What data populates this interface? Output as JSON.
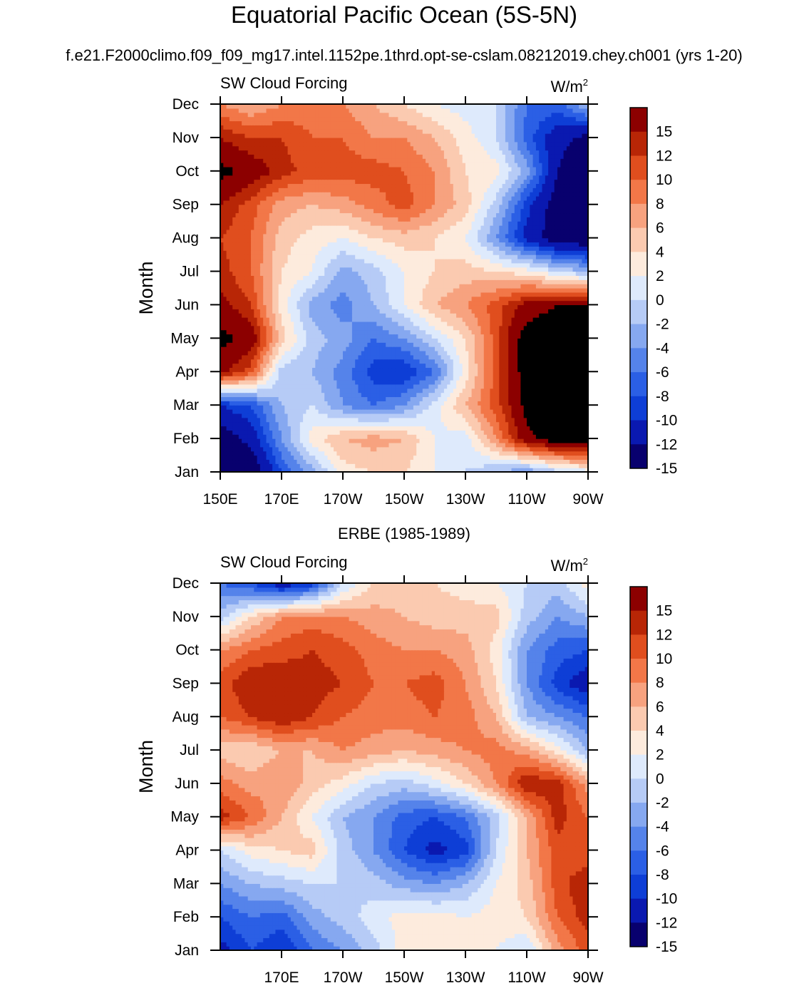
{
  "title": "Equatorial Pacific Ocean (5S-5N)",
  "panel_titles": [
    "f.e21.F2000climo.f09_f09_mg17.intel.1152pe.1thrd.opt-se-cslam.08212019.chey.ch001 (yrs 1-20)",
    "ERBE (1985-1989)"
  ],
  "chart_data": [
    {
      "type": "heatmap",
      "left_label": "SW Cloud Forcing",
      "right_label": "W/m",
      "right_label_sup": "2",
      "ylabel": "Month",
      "x_ticks": [
        "150E",
        "170E",
        "170W",
        "150W",
        "130W",
        "110W",
        "90W"
      ],
      "x_tick_values": [
        150,
        170,
        190,
        210,
        230,
        250,
        270
      ],
      "y_ticks": [
        "Jan",
        "Feb",
        "Mar",
        "Apr",
        "May",
        "Jun",
        "Jul",
        "Aug",
        "Sep",
        "Oct",
        "Nov",
        "Dec"
      ],
      "xlim": [
        150,
        270
      ],
      "ylim": [
        1,
        12
      ],
      "levels": [
        -15,
        -12,
        -10,
        -8,
        -6,
        -4,
        -2,
        0,
        2,
        4,
        6,
        8,
        10,
        12,
        15
      ],
      "colorbar_labels": [
        "15",
        "12",
        "10",
        "8",
        "6",
        "4",
        "2",
        "0",
        "-2",
        "-4",
        "-6",
        "-8",
        "-10",
        "-12",
        "-15"
      ],
      "colors": [
        "#08006e",
        "#0a19b0",
        "#0e3ed6",
        "#2b5fe5",
        "#5583ea",
        "#86a8f0",
        "#b6cbf6",
        "#deeafc",
        "#fdebdd",
        "#fbcab0",
        "#f7a27f",
        "#f27748",
        "#e04e1e",
        "#b82606",
        "#8c0000"
      ],
      "lon": [
        150,
        160,
        170,
        180,
        190,
        200,
        210,
        220,
        230,
        240,
        250,
        260,
        270
      ],
      "values": [
        [
          -18,
          -18,
          -10,
          -5,
          1,
          2,
          2,
          0,
          -2,
          -4,
          -6,
          -3,
          -1
        ],
        [
          -17,
          -14,
          -6,
          1,
          4,
          5,
          4,
          0,
          -1,
          6,
          14,
          17,
          18
        ],
        [
          -12,
          -10,
          -4,
          -2,
          -6,
          -8,
          -6,
          -1,
          4,
          9,
          16,
          18,
          18
        ],
        [
          13,
          9,
          -3,
          -4,
          -7,
          -11,
          -12,
          -8,
          1,
          9,
          17,
          18,
          18
        ],
        [
          16,
          14,
          3,
          -3,
          -5,
          -8,
          -6,
          -2,
          2,
          9,
          17,
          18,
          18
        ],
        [
          13,
          10,
          1,
          -5,
          -7,
          -4,
          0,
          4,
          6,
          9,
          13,
          15,
          15
        ],
        [
          11,
          8,
          2,
          0,
          -5,
          -3,
          0,
          2,
          3,
          2,
          1,
          -2,
          -4
        ],
        [
          10,
          8,
          3,
          1,
          0,
          2,
          3,
          2,
          0,
          -6,
          -13,
          -17,
          -18
        ],
        [
          12,
          9,
          5,
          4,
          5,
          7,
          9,
          6,
          3,
          -3,
          -11,
          -17,
          -18
        ],
        [
          16,
          14,
          11,
          9,
          9,
          9,
          8,
          6,
          2,
          1,
          -5,
          -15,
          -18
        ],
        [
          12,
          10,
          10,
          8,
          8,
          6,
          6,
          4,
          1,
          -2,
          -9,
          -14,
          -16
        ],
        [
          6,
          4,
          6,
          7,
          6,
          4,
          2,
          0,
          -1,
          -2,
          -8,
          -9,
          -4
        ]
      ]
    },
    {
      "type": "heatmap",
      "left_label": "SW Cloud Forcing",
      "right_label": "W/m",
      "right_label_sup": "2",
      "ylabel": "Month",
      "x_ticks": [
        "170E",
        "170W",
        "150W",
        "130W",
        "110W",
        "90W"
      ],
      "x_tick_values": [
        170,
        190,
        210,
        230,
        250,
        270
      ],
      "y_ticks": [
        "Jan",
        "Feb",
        "Mar",
        "Apr",
        "May",
        "Jun",
        "Jul",
        "Aug",
        "Sep",
        "Oct",
        "Nov",
        "Dec"
      ],
      "xlim": [
        150,
        270
      ],
      "ylim": [
        1,
        12
      ],
      "levels": [
        -15,
        -12,
        -10,
        -8,
        -6,
        -4,
        -2,
        0,
        2,
        4,
        6,
        8,
        10,
        12,
        15
      ],
      "colorbar_labels": [
        "15",
        "12",
        "10",
        "8",
        "6",
        "4",
        "2",
        "0",
        "-2",
        "-4",
        "-6",
        "-8",
        "-10",
        "-12",
        "-15"
      ],
      "colors": [
        "#08006e",
        "#0a19b0",
        "#0e3ed6",
        "#2b5fe5",
        "#5583ea",
        "#86a8f0",
        "#b6cbf6",
        "#deeafc",
        "#fdebdd",
        "#fbcab0",
        "#f7a27f",
        "#f27748",
        "#e04e1e",
        "#b82606",
        "#8c0000"
      ],
      "lon": [
        150,
        160,
        170,
        180,
        190,
        200,
        210,
        220,
        230,
        240,
        250,
        260,
        270
      ],
      "values": [
        [
          -13,
          -10,
          -12,
          -8,
          -6,
          -3,
          1,
          2,
          1,
          0,
          -2,
          5,
          9
        ],
        [
          -10,
          -8,
          -9,
          -5,
          -3,
          -1,
          1,
          1,
          0,
          1,
          2,
          8,
          11
        ],
        [
          -6,
          -4,
          -3,
          -2,
          -2,
          -3,
          -5,
          -6,
          -4,
          0,
          3,
          9,
          12
        ],
        [
          -2,
          1,
          2,
          3,
          -3,
          -6,
          -10,
          -13,
          -11,
          -2,
          4,
          9,
          8
        ],
        [
          11,
          8,
          4,
          0,
          -4,
          -6,
          -9,
          -10,
          -8,
          -3,
          4,
          11,
          8
        ],
        [
          7,
          5,
          6,
          3,
          1,
          -2,
          -3,
          -1,
          2,
          6,
          12,
          11,
          5
        ],
        [
          3,
          2,
          4,
          4,
          6,
          5,
          4,
          5,
          6,
          7,
          5,
          1,
          -4
        ],
        [
          8,
          10,
          12,
          10,
          8,
          7,
          7,
          8,
          7,
          4,
          -4,
          -6,
          -8
        ],
        [
          9,
          12,
          12,
          11,
          10,
          8,
          8,
          9,
          6,
          2,
          -6,
          -11,
          -14
        ],
        [
          6,
          8,
          9,
          10,
          9,
          7,
          6,
          6,
          5,
          1,
          -6,
          -9,
          -10
        ],
        [
          -3,
          2,
          6,
          7,
          6,
          5,
          4,
          3,
          3,
          3,
          -3,
          -6,
          -4
        ],
        [
          -8,
          -10,
          -14,
          -11,
          -2,
          2,
          3,
          2,
          1,
          0,
          -2,
          -3,
          1
        ]
      ]
    }
  ]
}
